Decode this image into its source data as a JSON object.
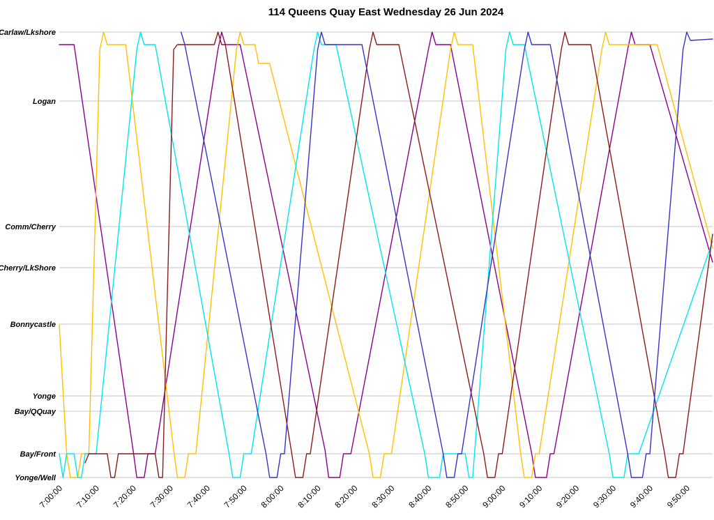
{
  "chart_data": {
    "type": "line",
    "title": "114 Queens Quay East Wednesday 26 Jun 2024",
    "description": "Time-distance (Marey) diagram of transit vehicles on route 114 Queens Quay East; each line is one vehicle travelling between Carlaw/Lkshore (top) and Yonge/Well (bottom).",
    "grid": "horizontal",
    "legend": "none",
    "x_axis": {
      "label": "",
      "start_time_label": "7:00:00",
      "range_minutes": [
        0,
        177
      ],
      "ticks": [
        {
          "minutes": 0,
          "label": "7:00:00"
        },
        {
          "minutes": 10,
          "label": "7:10:00"
        },
        {
          "minutes": 20,
          "label": "7:20:00"
        },
        {
          "minutes": 30,
          "label": "7:30:00"
        },
        {
          "minutes": 40,
          "label": "7:40:00"
        },
        {
          "minutes": 50,
          "label": "7:50:00"
        },
        {
          "minutes": 60,
          "label": "8:00:00"
        },
        {
          "minutes": 70,
          "label": "8:10:00"
        },
        {
          "minutes": 80,
          "label": "8:20:00"
        },
        {
          "minutes": 90,
          "label": "8:30:00"
        },
        {
          "minutes": 100,
          "label": "8:40:00"
        },
        {
          "minutes": 110,
          "label": "8:50:00"
        },
        {
          "minutes": 120,
          "label": "9:00:00"
        },
        {
          "minutes": 130,
          "label": "9:10:00"
        },
        {
          "minutes": 140,
          "label": "9:20:00"
        },
        {
          "minutes": 150,
          "label": "9:30:00"
        },
        {
          "minutes": 160,
          "label": "9:40:00"
        },
        {
          "minutes": 170,
          "label": "9:50:00"
        }
      ]
    },
    "y_axis": {
      "label": "",
      "inverted": true,
      "range": [
        0,
        639
      ],
      "stops": [
        {
          "label": "Carlaw/Lkshore",
          "position": 0
        },
        {
          "label": "Logan",
          "position": 99
        },
        {
          "label": "Comm/Cherry",
          "position": 279
        },
        {
          "label": "Cherry/LkShore",
          "position": 338
        },
        {
          "label": "Bonnycastle",
          "position": 419
        },
        {
          "label": "Yonge",
          "position": 522
        },
        {
          "label": "Bay/QQuay",
          "position": 544
        },
        {
          "label": "Bay/Front",
          "position": 605
        },
        {
          "label": "Yonge/Well",
          "position": 639
        }
      ]
    },
    "series": [
      {
        "name": "vehicle-purple",
        "color": "#8B008B",
        "points": [
          [
            0,
            18
          ],
          [
            4,
            18
          ],
          [
            20,
            600
          ],
          [
            21,
            639
          ],
          [
            23,
            639
          ],
          [
            24,
            605
          ],
          [
            26,
            605
          ],
          [
            43,
            25
          ],
          [
            44,
            0
          ],
          [
            45,
            18
          ],
          [
            49,
            18
          ],
          [
            72,
            600
          ],
          [
            73,
            639
          ],
          [
            76,
            639
          ],
          [
            77,
            605
          ],
          [
            79,
            605
          ],
          [
            100,
            25
          ],
          [
            101,
            0
          ],
          [
            102,
            18
          ],
          [
            106,
            18
          ],
          [
            128,
            605
          ],
          [
            129,
            639
          ],
          [
            132,
            639
          ],
          [
            133,
            605
          ],
          [
            134,
            605
          ],
          [
            154,
            25
          ],
          [
            155,
            0
          ],
          [
            156,
            18
          ],
          [
            160,
            18
          ],
          [
            177,
            330
          ]
        ]
      },
      {
        "name": "vehicle-gold",
        "color": "#FFC000",
        "points": [
          [
            0,
            420
          ],
          [
            2,
            605
          ],
          [
            3,
            639
          ],
          [
            5,
            639
          ],
          [
            6,
            605
          ],
          [
            8,
            605
          ],
          [
            11,
            25
          ],
          [
            12,
            0
          ],
          [
            13,
            18
          ],
          [
            18,
            18
          ],
          [
            31,
            600
          ],
          [
            32,
            639
          ],
          [
            34,
            639
          ],
          [
            35,
            605
          ],
          [
            37,
            605
          ],
          [
            48,
            25
          ],
          [
            49,
            0
          ],
          [
            50,
            18
          ],
          [
            53,
            18
          ],
          [
            54,
            45
          ],
          [
            57,
            45
          ],
          [
            84,
            605
          ],
          [
            85,
            639
          ],
          [
            87,
            639
          ],
          [
            88,
            605
          ],
          [
            90,
            605
          ],
          [
            106,
            25
          ],
          [
            107,
            0
          ],
          [
            108,
            18
          ],
          [
            112,
            18
          ],
          [
            125,
            605
          ],
          [
            126,
            639
          ],
          [
            128,
            639
          ],
          [
            129,
            605
          ],
          [
            130,
            605
          ],
          [
            147,
            25
          ],
          [
            148,
            0
          ],
          [
            149,
            18
          ],
          [
            162,
            18
          ],
          [
            177,
            310
          ]
        ]
      },
      {
        "name": "vehicle-cyan",
        "color": "#00E5EE",
        "points": [
          [
            0,
            605
          ],
          [
            1,
            639
          ],
          [
            2,
            605
          ],
          [
            4,
            605
          ],
          [
            5,
            639
          ],
          [
            6,
            639
          ],
          [
            7,
            605
          ],
          [
            10,
            605
          ],
          [
            21,
            25
          ],
          [
            22,
            0
          ],
          [
            23,
            18
          ],
          [
            26,
            18
          ],
          [
            46,
            605
          ],
          [
            47,
            639
          ],
          [
            49,
            639
          ],
          [
            50,
            605
          ],
          [
            52,
            605
          ],
          [
            69,
            25
          ],
          [
            70,
            0
          ],
          [
            71,
            18
          ],
          [
            75,
            18
          ],
          [
            99,
            605
          ],
          [
            100,
            639
          ],
          [
            103,
            639
          ],
          [
            104,
            605
          ],
          [
            110,
            605
          ],
          [
            111,
            639
          ],
          [
            112,
            639
          ],
          [
            121,
            25
          ],
          [
            122,
            0
          ],
          [
            123,
            18
          ],
          [
            126,
            18
          ],
          [
            149,
            605
          ],
          [
            150,
            639
          ],
          [
            153,
            639
          ],
          [
            154,
            605
          ],
          [
            157,
            605
          ],
          [
            177,
            300
          ]
        ]
      },
      {
        "name": "vehicle-darkred",
        "color": "#8B1A1A",
        "points": [
          [
            7,
            618
          ],
          [
            8,
            605
          ],
          [
            13,
            605
          ],
          [
            14,
            639
          ],
          [
            15,
            639
          ],
          [
            16,
            605
          ],
          [
            26,
            605
          ],
          [
            27,
            639
          ],
          [
            28,
            639
          ],
          [
            31,
            25
          ],
          [
            32,
            18
          ],
          [
            42,
            18
          ],
          [
            43,
            0
          ],
          [
            44,
            18
          ],
          [
            45,
            18
          ],
          [
            63,
            605
          ],
          [
            64,
            639
          ],
          [
            66,
            639
          ],
          [
            67,
            605
          ],
          [
            68,
            605
          ],
          [
            84,
            25
          ],
          [
            85,
            0
          ],
          [
            86,
            18
          ],
          [
            92,
            18
          ],
          [
            115,
            605
          ],
          [
            116,
            639
          ],
          [
            118,
            639
          ],
          [
            119,
            605
          ],
          [
            120,
            605
          ],
          [
            136,
            25
          ],
          [
            137,
            0
          ],
          [
            138,
            18
          ],
          [
            144,
            18
          ],
          [
            164,
            605
          ],
          [
            165,
            639
          ],
          [
            167,
            639
          ],
          [
            168,
            605
          ],
          [
            169,
            605
          ],
          [
            177,
            290
          ]
        ]
      },
      {
        "name": "vehicle-blue",
        "color": "#3333CC",
        "points": [
          [
            33,
            0
          ],
          [
            34,
            18
          ],
          [
            56,
            605
          ],
          [
            57,
            639
          ],
          [
            59,
            639
          ],
          [
            60,
            605
          ],
          [
            61,
            605
          ],
          [
            70,
            25
          ],
          [
            71,
            0
          ],
          [
            72,
            18
          ],
          [
            82,
            18
          ],
          [
            104,
            605
          ],
          [
            105,
            639
          ],
          [
            107,
            639
          ],
          [
            108,
            605
          ],
          [
            109,
            605
          ],
          [
            126,
            25
          ],
          [
            127,
            0
          ],
          [
            128,
            18
          ],
          [
            133,
            18
          ],
          [
            154,
            605
          ],
          [
            155,
            639
          ],
          [
            158,
            639
          ],
          [
            159,
            605
          ],
          [
            160,
            605
          ],
          [
            169,
            25
          ],
          [
            170,
            0
          ],
          [
            171,
            12
          ],
          [
            177,
            10
          ]
        ]
      }
    ],
    "style": {
      "background": "#ffffff",
      "grid_color": "#c6c6c6",
      "text_color": "#000000"
    }
  }
}
